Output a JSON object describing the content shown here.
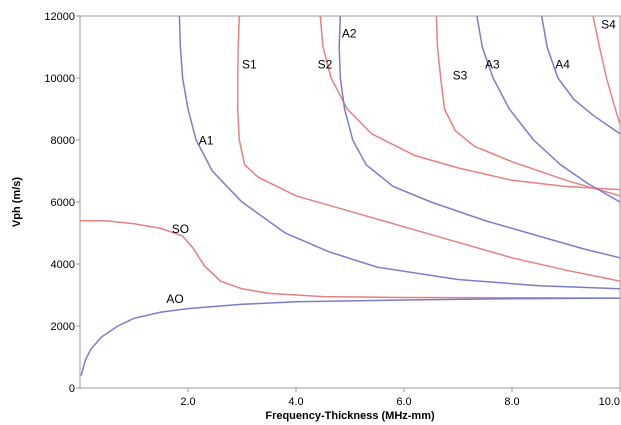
{
  "chart_data": {
    "type": "line",
    "title": "",
    "xlabel": "Frequency-Thickness (MHz-mm)",
    "ylabel": "Vph (m/s)",
    "xlim": [
      0,
      10
    ],
    "ylim": [
      0,
      12000
    ],
    "x_ticks": [
      {
        "value": 2,
        "label": "2.0"
      },
      {
        "value": 4,
        "label": "4.0"
      },
      {
        "value": 6,
        "label": "6.0"
      },
      {
        "value": 8,
        "label": "8.0"
      },
      {
        "value": 10,
        "label": "10.0"
      }
    ],
    "y_ticks": [
      {
        "value": 0,
        "label": "0"
      },
      {
        "value": 2000,
        "label": "2000"
      },
      {
        "value": 4000,
        "label": "4000"
      },
      {
        "value": 6000,
        "label": "6000"
      },
      {
        "value": 8000,
        "label": "8000"
      },
      {
        "value": 10000,
        "label": "10000"
      },
      {
        "value": 12000,
        "label": "12000"
      }
    ],
    "grid": false,
    "legend": "none",
    "colors": {
      "symmetric": "#e88080",
      "antisymmetric": "#7c7ccc"
    },
    "series": [
      {
        "name": "SO",
        "family": "symmetric",
        "label_at": [
          1.7,
          5000
        ],
        "points": [
          [
            0,
            5400
          ],
          [
            0.5,
            5390
          ],
          [
            1.0,
            5300
          ],
          [
            1.5,
            5150
          ],
          [
            1.9,
            4900
          ],
          [
            2.1,
            4500
          ],
          [
            2.3,
            3950
          ],
          [
            2.6,
            3450
          ],
          [
            3.0,
            3200
          ],
          [
            3.5,
            3050
          ],
          [
            4.5,
            2950
          ],
          [
            6,
            2920
          ],
          [
            8,
            2910
          ],
          [
            10,
            2900
          ]
        ]
      },
      {
        "name": "AO",
        "family": "antisymmetric",
        "label_at": [
          1.6,
          2750
        ],
        "points": [
          [
            0.02,
            400
          ],
          [
            0.1,
            900
          ],
          [
            0.2,
            1250
          ],
          [
            0.4,
            1650
          ],
          [
            0.7,
            2000
          ],
          [
            1.0,
            2250
          ],
          [
            1.5,
            2450
          ],
          [
            2,
            2560
          ],
          [
            3,
            2700
          ],
          [
            4,
            2780
          ],
          [
            6,
            2840
          ],
          [
            8,
            2880
          ],
          [
            10,
            2900
          ]
        ]
      },
      {
        "name": "A1",
        "family": "antisymmetric",
        "label_at": [
          2.2,
          7850
        ],
        "points": [
          [
            1.84,
            12000
          ],
          [
            1.86,
            11000
          ],
          [
            1.9,
            10000
          ],
          [
            2.0,
            9000
          ],
          [
            2.15,
            8000
          ],
          [
            2.45,
            7000
          ],
          [
            3.0,
            6000
          ],
          [
            3.8,
            5000
          ],
          [
            4.6,
            4400
          ],
          [
            5.5,
            3900
          ],
          [
            7,
            3500
          ],
          [
            8.5,
            3300
          ],
          [
            10,
            3200
          ]
        ]
      },
      {
        "name": "S1",
        "family": "symmetric",
        "label_at": [
          3.0,
          10300
        ],
        "points": [
          [
            2.95,
            12000
          ],
          [
            2.93,
            11000
          ],
          [
            2.92,
            10000
          ],
          [
            2.92,
            9000
          ],
          [
            2.95,
            8000
          ],
          [
            3.05,
            7200
          ],
          [
            3.3,
            6800
          ],
          [
            4.0,
            6200
          ],
          [
            5.0,
            5700
          ],
          [
            6,
            5200
          ],
          [
            7,
            4700
          ],
          [
            8,
            4200
          ],
          [
            9,
            3800
          ],
          [
            10,
            3450
          ]
        ]
      },
      {
        "name": "S2",
        "family": "symmetric",
        "label_at": [
          4.4,
          10300
        ],
        "points": [
          [
            4.45,
            12000
          ],
          [
            4.5,
            11000
          ],
          [
            4.65,
            10000
          ],
          [
            4.95,
            9000
          ],
          [
            5.4,
            8200
          ],
          [
            6.2,
            7500
          ],
          [
            7,
            7100
          ],
          [
            8,
            6700
          ],
          [
            9,
            6500
          ],
          [
            10,
            6400
          ]
        ]
      },
      {
        "name": "A2",
        "family": "antisymmetric",
        "label_at": [
          4.85,
          11300
        ],
        "points": [
          [
            4.82,
            12000
          ],
          [
            4.8,
            11000
          ],
          [
            4.82,
            10000
          ],
          [
            4.9,
            9000
          ],
          [
            5.05,
            8000
          ],
          [
            5.3,
            7200
          ],
          [
            5.8,
            6500
          ],
          [
            6.5,
            6000
          ],
          [
            7.5,
            5400
          ],
          [
            8.5,
            4900
          ],
          [
            9.3,
            4500
          ],
          [
            10,
            4200
          ]
        ]
      },
      {
        "name": "S3",
        "family": "symmetric",
        "label_at": [
          6.9,
          9950
        ],
        "points": [
          [
            6.6,
            12000
          ],
          [
            6.62,
            11000
          ],
          [
            6.68,
            10000
          ],
          [
            6.75,
            9000
          ],
          [
            6.95,
            8300
          ],
          [
            7.3,
            7800
          ],
          [
            8,
            7300
          ],
          [
            9,
            6700
          ],
          [
            10,
            6200
          ]
        ]
      },
      {
        "name": "A3",
        "family": "antisymmetric",
        "label_at": [
          7.5,
          10300
        ],
        "points": [
          [
            7.35,
            12000
          ],
          [
            7.45,
            11000
          ],
          [
            7.65,
            10000
          ],
          [
            7.95,
            9000
          ],
          [
            8.4,
            8000
          ],
          [
            8.9,
            7200
          ],
          [
            9.4,
            6600
          ],
          [
            10,
            6000
          ]
        ]
      },
      {
        "name": "A4",
        "family": "antisymmetric",
        "label_at": [
          8.8,
          10300
        ],
        "points": [
          [
            8.55,
            12000
          ],
          [
            8.65,
            11000
          ],
          [
            8.85,
            10000
          ],
          [
            9.15,
            9300
          ],
          [
            9.5,
            8800
          ],
          [
            10,
            8200
          ]
        ]
      },
      {
        "name": "S4",
        "family": "symmetric",
        "label_at": [
          9.65,
          11600
        ],
        "points": [
          [
            9.5,
            12000
          ],
          [
            9.62,
            11000
          ],
          [
            9.75,
            10000
          ],
          [
            9.88,
            9200
          ],
          [
            10,
            8500
          ]
        ]
      }
    ]
  }
}
